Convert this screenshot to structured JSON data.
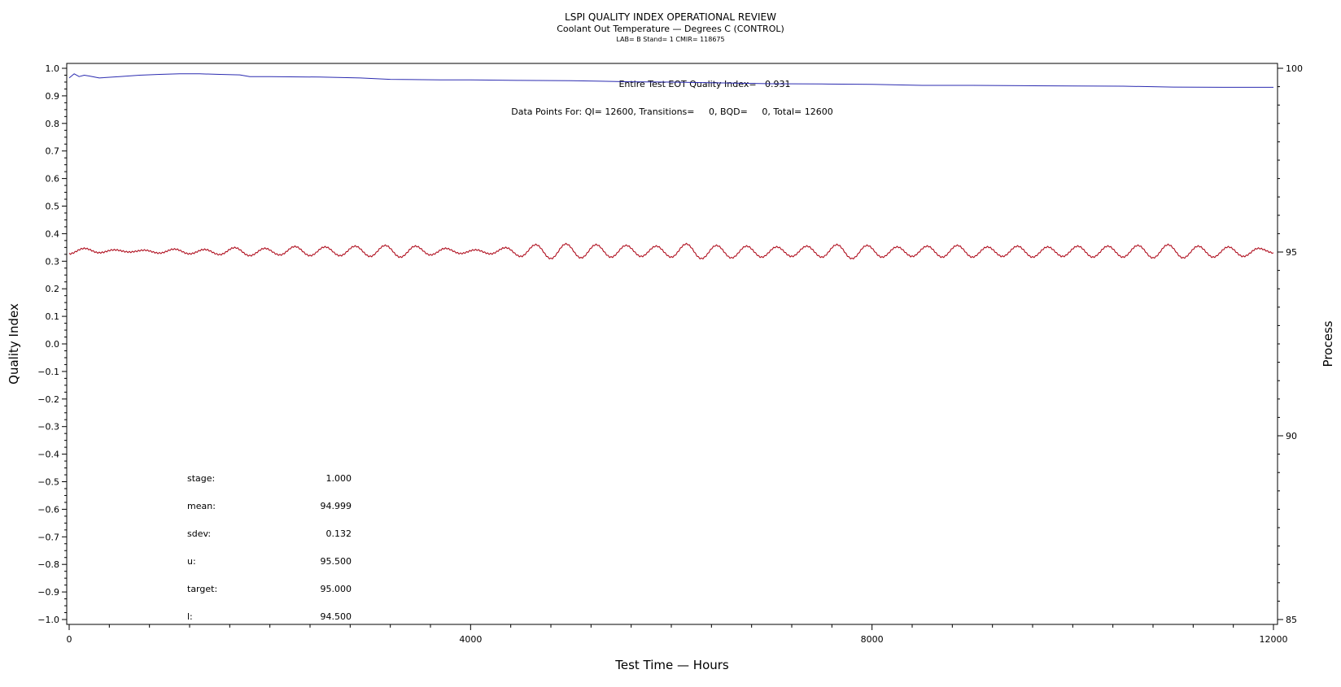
{
  "chart_data": {
    "type": "line",
    "title": "LSPI QUALITY INDEX OPERATIONAL REVIEW",
    "subtitle": "Coolant Out Temperature — Degrees C (CONTROL)",
    "subtitle2": "LAB= B Stand= 1 CMIR= 118675",
    "xlabel": "Test Time — Hours",
    "ylabel": "Quality Index",
    "y2label": "Process",
    "xlim": [
      0,
      12000
    ],
    "ylim": [
      -1.0,
      1.0
    ],
    "y2lim": [
      85,
      100
    ],
    "x_ticks": [
      0,
      4000,
      8000,
      12000
    ],
    "x_tick_labels": [
      "0",
      "4000",
      "8000",
      "12000"
    ],
    "y_ticks": [
      1.0,
      0.9,
      0.8,
      0.7,
      0.6,
      0.5,
      0.4,
      0.3,
      0.2,
      0.1,
      0.0,
      -0.1,
      -0.2,
      -0.3,
      -0.4,
      -0.5,
      -0.6,
      -0.7,
      -0.8,
      -0.9,
      -1.0
    ],
    "y_tick_labels": [
      "1.0",
      "0.9",
      "0.8",
      "0.7",
      "0.6",
      "0.5",
      "0.4",
      "0.3",
      "0.2",
      "0.1",
      "0.0",
      "−0.1",
      "−0.2",
      "−0.3",
      "−0.4",
      "−0.5",
      "−0.6",
      "−0.7",
      "−0.8",
      "−0.9",
      "−1.0"
    ],
    "y2_ticks": [
      100,
      95,
      90,
      85
    ],
    "y2_tick_labels": [
      "100",
      "95",
      "90",
      "85"
    ],
    "series": [
      {
        "axis": "left",
        "color": "#2b2bb0",
        "x": [
          0,
          50,
          100,
          150,
          200,
          300,
          500,
          700,
          900,
          1100,
          1300,
          1500,
          1700,
          1800,
          2000,
          2500,
          2900,
          3200,
          3700,
          4000,
          4500,
          5000,
          5300,
          5600,
          6000,
          6500,
          7000,
          7500,
          8000,
          8500,
          9000,
          9500,
          10000,
          10500,
          11000,
          11500,
          12000
        ],
        "y": [
          0.965,
          0.98,
          0.97,
          0.975,
          0.972,
          0.965,
          0.97,
          0.975,
          0.978,
          0.98,
          0.98,
          0.978,
          0.976,
          0.97,
          0.97,
          0.968,
          0.965,
          0.96,
          0.958,
          0.958,
          0.956,
          0.955,
          0.953,
          0.951,
          0.95,
          0.947,
          0.944,
          0.943,
          0.942,
          0.938,
          0.938,
          0.937,
          0.936,
          0.935,
          0.932,
          0.931,
          0.931
        ]
      },
      {
        "axis": "right",
        "color": "#b01020",
        "stats": {
          "mean": 94.999,
          "sdev": 0.132,
          "target": 95.0,
          "u": 95.5,
          "l": 94.5
        },
        "x": [
          0,
          150,
          300,
          450,
          600,
          750,
          900,
          1050,
          1200,
          1350,
          1500,
          1650,
          1800,
          1950,
          2100,
          2250,
          2400,
          2550,
          2700,
          2850,
          3000,
          3150,
          3300,
          3450,
          3600,
          3750,
          3900,
          4050,
          4200,
          4350,
          4500,
          4650,
          4800,
          4950,
          5100,
          5250,
          5400,
          5550,
          5700,
          5850,
          6000,
          6150,
          6300,
          6450,
          6600,
          6750,
          6900,
          7050,
          7200,
          7350,
          7500,
          7650,
          7800,
          7950,
          8100,
          8250,
          8400,
          8550,
          8700,
          8850,
          9000,
          9150,
          9300,
          9450,
          9600,
          9750,
          9900,
          10050,
          10200,
          10350,
          10500,
          10650,
          10800,
          10950,
          11100,
          11250,
          11400,
          11550,
          11700,
          11850,
          12000
        ],
        "y": [
          94.95,
          95.1,
          94.98,
          95.06,
          95.0,
          95.05,
          94.97,
          95.08,
          94.95,
          95.07,
          94.93,
          95.12,
          94.9,
          95.1,
          94.92,
          95.15,
          94.9,
          95.14,
          94.9,
          95.16,
          94.88,
          95.18,
          94.86,
          95.16,
          94.92,
          95.1,
          94.96,
          95.06,
          94.95,
          95.12,
          94.88,
          95.2,
          94.82,
          95.22,
          94.84,
          95.2,
          94.86,
          95.18,
          94.88,
          95.16,
          94.86,
          95.22,
          94.82,
          95.18,
          94.84,
          95.16,
          94.86,
          95.14,
          94.88,
          95.16,
          94.86,
          95.2,
          94.82,
          95.18,
          94.86,
          95.14,
          94.88,
          95.16,
          94.86,
          95.18,
          94.86,
          95.14,
          94.88,
          95.16,
          94.86,
          95.14,
          94.88,
          95.16,
          94.86,
          95.16,
          94.86,
          95.18,
          94.84,
          95.2,
          94.84,
          95.16,
          94.86,
          95.14,
          94.88,
          95.1,
          94.98
        ]
      }
    ]
  },
  "annotations": {
    "qi_text": "Entire Test EOT Quality Index=   0.931",
    "points_text": "Data Points For: QI= 12600, Transitions=     0, BQD=     0, Total= 12600"
  },
  "stats_table": [
    {
      "label": "stage:",
      "value": "1.000"
    },
    {
      "label": "mean:",
      "value": "94.999"
    },
    {
      "label": "sdev:",
      "value": "0.132"
    },
    {
      "label": "u:",
      "value": "95.500"
    },
    {
      "label": "target:",
      "value": "95.000"
    },
    {
      "label": "l:",
      "value": "94.500"
    }
  ]
}
